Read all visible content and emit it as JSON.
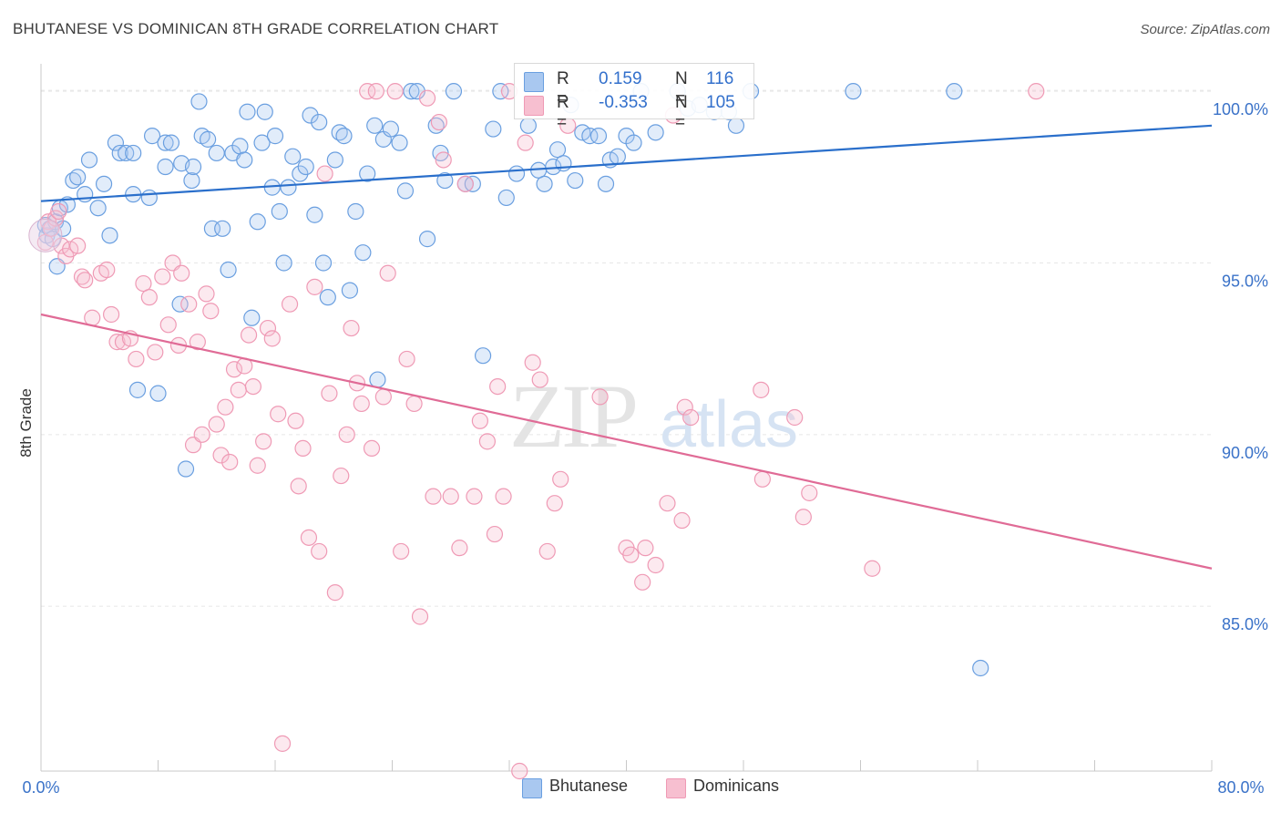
{
  "title": "BHUTANESE VS DOMINICAN 8TH GRADE CORRELATION CHART",
  "source": "Source: ZipAtlas.com",
  "watermark": {
    "zip": "ZIP",
    "atlas": "atlas"
  },
  "legend_top": {
    "rows": [
      {
        "r_label": "R =",
        "r_value": "0.159",
        "n_label": "N =",
        "n_value": "116",
        "color": "#a9c8f0"
      },
      {
        "r_label": "R =",
        "r_value": "-0.353",
        "n_label": "N =",
        "n_value": "105",
        "color": "#f7bfd0"
      }
    ]
  },
  "legend_bottom": [
    {
      "label": "Bhutanese",
      "color": "#a9c8f0"
    },
    {
      "label": "Dominicans",
      "color": "#f7bfd0"
    }
  ],
  "chart_data": {
    "type": "scatter",
    "title": "BHUTANESE VS DOMINICAN 8TH GRADE CORRELATION CHART",
    "xlabel": "",
    "ylabel": "8th Grade",
    "xlim": [
      0,
      80
    ],
    "ylim": [
      80.2,
      100.8
    ],
    "x_tick_labels": [
      "0.0%",
      "80.0%"
    ],
    "y_ticks": [
      85,
      90,
      95,
      100
    ],
    "y_tick_labels": [
      "85.0%",
      "90.0%",
      "95.0%",
      "100.0%"
    ],
    "grid": true,
    "colors": {
      "bhutanese": "#6a9fe0",
      "bhutanese_line": "#2a6fcb",
      "dominicans": "#ef9ab5",
      "dominicans_line": "#e06b96",
      "tick_label": "#3a72c8"
    },
    "series": [
      {
        "name": "Bhutanese",
        "trend": {
          "x": [
            0,
            80
          ],
          "y": [
            96.8,
            99.0
          ]
        },
        "points": [
          [
            0.3,
            96.1
          ],
          [
            0.4,
            95.8
          ],
          [
            0.6,
            96.0
          ],
          [
            0.8,
            95.7
          ],
          [
            1.0,
            96.2
          ],
          [
            1.1,
            94.9
          ],
          [
            1.3,
            96.6
          ],
          [
            1.5,
            96.0
          ],
          [
            1.8,
            96.7
          ],
          [
            2.2,
            97.4
          ],
          [
            2.5,
            97.5
          ],
          [
            3.0,
            97.0
          ],
          [
            3.3,
            98.0
          ],
          [
            3.9,
            96.6
          ],
          [
            4.3,
            97.3
          ],
          [
            4.7,
            95.8
          ],
          [
            5.1,
            98.5
          ],
          [
            5.4,
            98.2
          ],
          [
            5.8,
            98.2
          ],
          [
            6.3,
            98.2
          ],
          [
            6.3,
            97.0
          ],
          [
            7.4,
            96.9
          ],
          [
            7.6,
            98.7
          ],
          [
            8.5,
            98.5
          ],
          [
            8.5,
            97.8
          ],
          [
            8.9,
            98.5
          ],
          [
            9.6,
            97.9
          ],
          [
            10.3,
            97.4
          ],
          [
            10.4,
            97.8
          ],
          [
            10.8,
            99.7
          ],
          [
            11.0,
            98.7
          ],
          [
            11.4,
            98.6
          ],
          [
            11.7,
            96.0
          ],
          [
            12.0,
            98.2
          ],
          [
            12.4,
            96.0
          ],
          [
            12.8,
            94.8
          ],
          [
            13.1,
            98.2
          ],
          [
            13.6,
            98.4
          ],
          [
            13.9,
            98.0
          ],
          [
            14.1,
            99.4
          ],
          [
            14.4,
            93.4
          ],
          [
            14.8,
            96.2
          ],
          [
            15.1,
            98.5
          ],
          [
            15.3,
            99.4
          ],
          [
            15.8,
            97.2
          ],
          [
            16.0,
            98.7
          ],
          [
            16.3,
            96.5
          ],
          [
            16.6,
            95.0
          ],
          [
            16.9,
            97.2
          ],
          [
            17.2,
            98.1
          ],
          [
            17.7,
            97.6
          ],
          [
            18.1,
            97.8
          ],
          [
            18.4,
            99.3
          ],
          [
            18.7,
            96.4
          ],
          [
            19.0,
            99.1
          ],
          [
            19.3,
            95.0
          ],
          [
            19.6,
            94.0
          ],
          [
            20.1,
            98.0
          ],
          [
            20.4,
            98.8
          ],
          [
            20.7,
            98.7
          ],
          [
            21.1,
            94.2
          ],
          [
            21.5,
            96.5
          ],
          [
            22.0,
            95.3
          ],
          [
            22.3,
            97.6
          ],
          [
            22.8,
            99.0
          ],
          [
            23.4,
            98.6
          ],
          [
            23.9,
            98.9
          ],
          [
            24.5,
            98.5
          ],
          [
            24.9,
            97.1
          ],
          [
            25.3,
            100.0
          ],
          [
            25.7,
            100.0
          ],
          [
            26.4,
            95.7
          ],
          [
            27.0,
            99.0
          ],
          [
            27.3,
            98.2
          ],
          [
            27.6,
            97.4
          ],
          [
            28.2,
            100.0
          ],
          [
            29.0,
            97.3
          ],
          [
            29.5,
            97.3
          ],
          [
            30.2,
            92.3
          ],
          [
            30.9,
            98.9
          ],
          [
            31.4,
            100.0
          ],
          [
            31.8,
            96.9
          ],
          [
            32.5,
            97.6
          ],
          [
            33.3,
            99.0
          ],
          [
            34.0,
            97.7
          ],
          [
            34.4,
            97.3
          ],
          [
            35.0,
            97.8
          ],
          [
            35.3,
            98.3
          ],
          [
            35.7,
            97.9
          ],
          [
            36.2,
            99.6
          ],
          [
            36.5,
            97.4
          ],
          [
            37.0,
            98.8
          ],
          [
            37.5,
            98.7
          ],
          [
            38.1,
            98.7
          ],
          [
            38.6,
            97.3
          ],
          [
            38.9,
            98.0
          ],
          [
            39.4,
            98.1
          ],
          [
            40.0,
            98.7
          ],
          [
            40.5,
            98.5
          ],
          [
            41.0,
            100.0
          ],
          [
            42.0,
            98.8
          ],
          [
            43.5,
            100.0
          ],
          [
            44.2,
            99.5
          ],
          [
            45.0,
            99.6
          ],
          [
            46.0,
            99.4
          ],
          [
            47.0,
            99.4
          ],
          [
            47.5,
            99.0
          ],
          [
            48.5,
            100.0
          ],
          [
            55.5,
            100.0
          ],
          [
            62.4,
            100.0
          ],
          [
            64.2,
            83.2
          ],
          [
            6.6,
            91.3
          ],
          [
            8.0,
            91.2
          ],
          [
            9.5,
            93.8
          ],
          [
            9.9,
            89.0
          ],
          [
            23.0,
            91.6
          ]
        ]
      },
      {
        "name": "Dominicans",
        "trend": {
          "x": [
            0,
            80
          ],
          "y": [
            93.5,
            86.1
          ]
        },
        "points": [
          [
            0.3,
            95.6
          ],
          [
            0.5,
            96.2
          ],
          [
            0.7,
            96.0
          ],
          [
            1.0,
            96.3
          ],
          [
            1.2,
            96.5
          ],
          [
            1.4,
            95.5
          ],
          [
            1.7,
            95.2
          ],
          [
            2.0,
            95.4
          ],
          [
            2.5,
            95.5
          ],
          [
            2.8,
            94.6
          ],
          [
            3.0,
            94.5
          ],
          [
            3.5,
            93.4
          ],
          [
            4.1,
            94.7
          ],
          [
            4.5,
            94.8
          ],
          [
            4.8,
            93.5
          ],
          [
            5.2,
            92.7
          ],
          [
            5.6,
            92.7
          ],
          [
            6.1,
            92.8
          ],
          [
            6.5,
            92.2
          ],
          [
            7.0,
            94.4
          ],
          [
            7.4,
            94.0
          ],
          [
            7.8,
            92.4
          ],
          [
            8.3,
            94.6
          ],
          [
            8.7,
            93.2
          ],
          [
            9.0,
            95.0
          ],
          [
            9.4,
            92.6
          ],
          [
            9.6,
            94.7
          ],
          [
            10.1,
            93.8
          ],
          [
            10.4,
            89.7
          ],
          [
            10.7,
            92.7
          ],
          [
            11.0,
            90.0
          ],
          [
            11.3,
            94.1
          ],
          [
            11.6,
            93.6
          ],
          [
            12.0,
            90.3
          ],
          [
            12.3,
            89.4
          ],
          [
            12.6,
            90.8
          ],
          [
            12.9,
            89.2
          ],
          [
            13.2,
            91.9
          ],
          [
            13.5,
            91.3
          ],
          [
            13.9,
            92.0
          ],
          [
            14.2,
            92.9
          ],
          [
            14.5,
            91.4
          ],
          [
            14.8,
            89.1
          ],
          [
            15.2,
            89.8
          ],
          [
            15.5,
            93.1
          ],
          [
            15.8,
            92.8
          ],
          [
            16.2,
            90.6
          ],
          [
            16.5,
            81.0
          ],
          [
            17.0,
            93.8
          ],
          [
            17.4,
            90.4
          ],
          [
            17.6,
            88.5
          ],
          [
            17.9,
            89.6
          ],
          [
            18.3,
            87.0
          ],
          [
            18.7,
            94.3
          ],
          [
            19.0,
            86.6
          ],
          [
            19.4,
            97.6
          ],
          [
            19.7,
            91.2
          ],
          [
            20.1,
            85.4
          ],
          [
            20.5,
            88.8
          ],
          [
            20.9,
            90.0
          ],
          [
            21.2,
            93.1
          ],
          [
            21.6,
            91.5
          ],
          [
            21.9,
            90.9
          ],
          [
            22.3,
            100.0
          ],
          [
            22.6,
            89.6
          ],
          [
            22.9,
            100.0
          ],
          [
            23.4,
            91.1
          ],
          [
            23.7,
            94.7
          ],
          [
            24.2,
            100.0
          ],
          [
            24.6,
            86.6
          ],
          [
            25.0,
            92.2
          ],
          [
            25.5,
            90.9
          ],
          [
            25.9,
            84.7
          ],
          [
            26.4,
            99.8
          ],
          [
            26.8,
            88.2
          ],
          [
            27.2,
            99.1
          ],
          [
            27.5,
            98.0
          ],
          [
            28.0,
            88.2
          ],
          [
            28.6,
            86.7
          ],
          [
            29.0,
            97.3
          ],
          [
            29.6,
            88.2
          ],
          [
            30.0,
            90.4
          ],
          [
            30.5,
            89.8
          ],
          [
            31.0,
            87.1
          ],
          [
            31.2,
            91.4
          ],
          [
            31.6,
            88.2
          ],
          [
            32.0,
            100.0
          ],
          [
            32.7,
            80.2
          ],
          [
            33.1,
            98.5
          ],
          [
            33.6,
            92.1
          ],
          [
            34.1,
            91.6
          ],
          [
            34.6,
            86.6
          ],
          [
            35.1,
            88.0
          ],
          [
            35.5,
            88.7
          ],
          [
            36.0,
            99.0
          ],
          [
            38.2,
            91.1
          ],
          [
            40.0,
            86.7
          ],
          [
            40.3,
            86.5
          ],
          [
            41.1,
            85.7
          ],
          [
            41.3,
            86.7
          ],
          [
            42.0,
            86.2
          ],
          [
            42.8,
            88.0
          ],
          [
            43.8,
            87.5
          ],
          [
            44.0,
            90.8
          ],
          [
            44.4,
            90.5
          ]
        ]
      },
      {
        "name": "Dominicans (extra)",
        "points": [
          [
            43.2,
            99.3
          ],
          [
            49.3,
            88.7
          ],
          [
            49.2,
            91.3
          ],
          [
            51.5,
            90.5
          ],
          [
            52.1,
            87.6
          ],
          [
            52.5,
            88.3
          ],
          [
            56.8,
            86.1
          ],
          [
            68.0,
            100.0
          ]
        ]
      }
    ]
  }
}
